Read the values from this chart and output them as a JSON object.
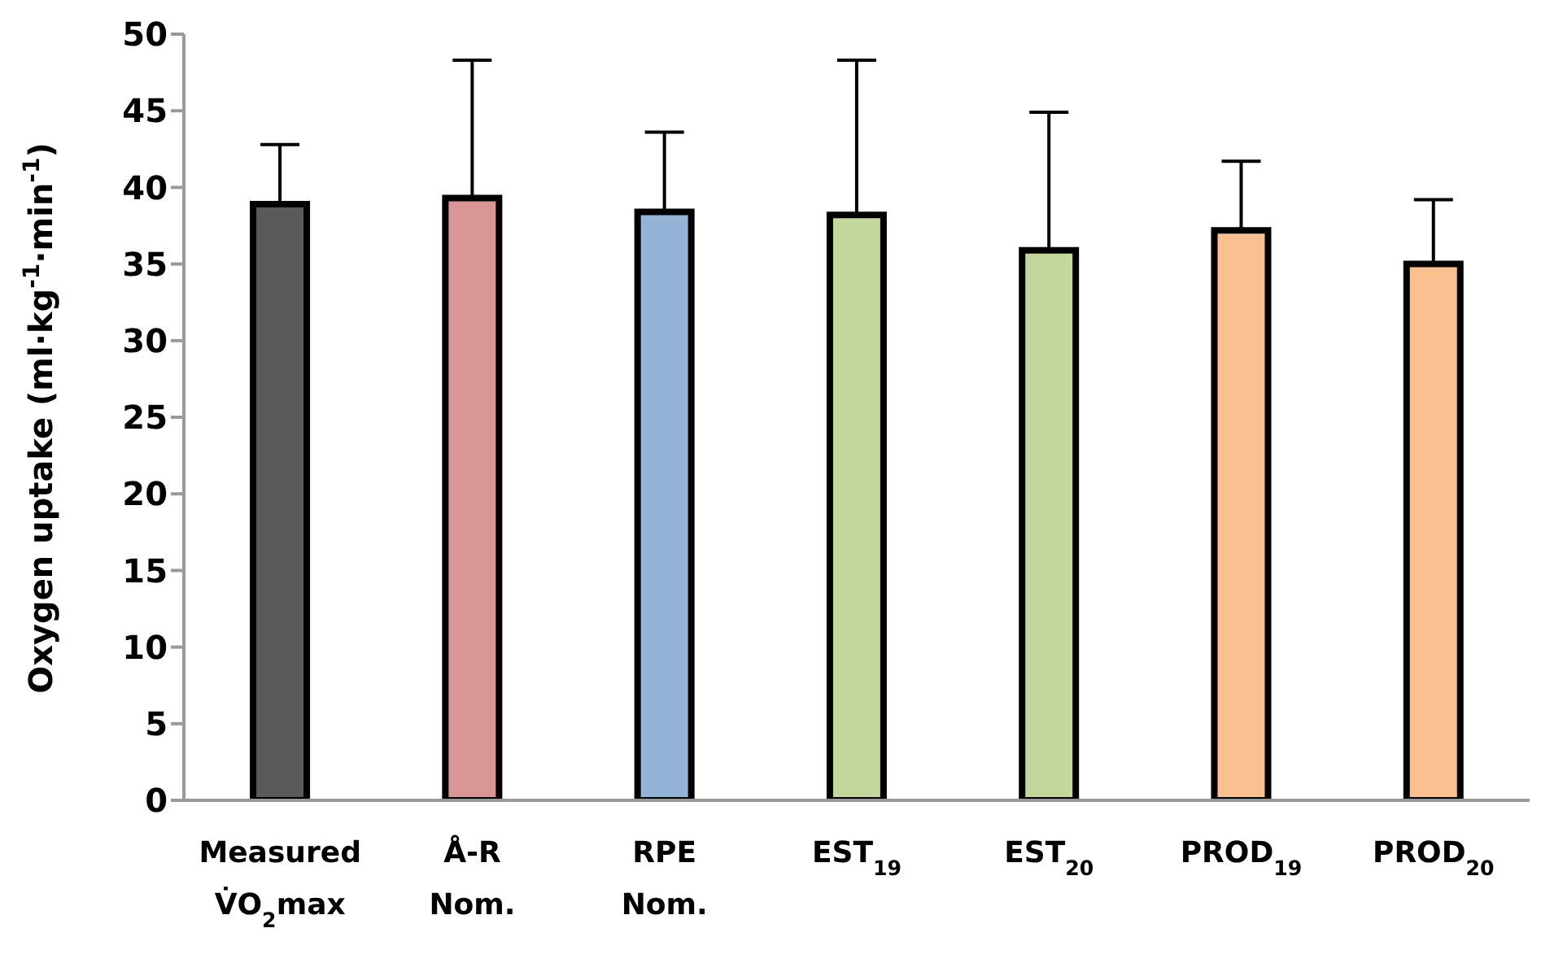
{
  "chart_data": {
    "type": "bar",
    "ylabel": "Oxygen uptake (ml·kg$^{-1}$·min$^{-1}$)",
    "categories": [
      "Measured\nV̇O$_{2}$max",
      "Å-R\nNom.",
      "RPE\nNom.",
      "EST$_{19}$",
      "EST$_{20}$",
      "PROD$_{19}$",
      "PROD$_{20}$"
    ],
    "values": [
      38.9,
      39.3,
      38.4,
      38.2,
      35.9,
      37.2,
      35.0
    ],
    "errors": [
      3.9,
      9.0,
      5.2,
      10.1,
      9.0,
      4.5,
      4.2
    ],
    "colors": [
      "#595959",
      "#d99694",
      "#95b3d7",
      "#c3d69b",
      "#c3d69b",
      "#fac090",
      "#fac090"
    ],
    "ylim": [
      0,
      50
    ],
    "yticks": [
      0,
      5,
      10,
      15,
      20,
      25,
      30,
      35,
      40,
      45,
      50
    ],
    "grid": false
  }
}
